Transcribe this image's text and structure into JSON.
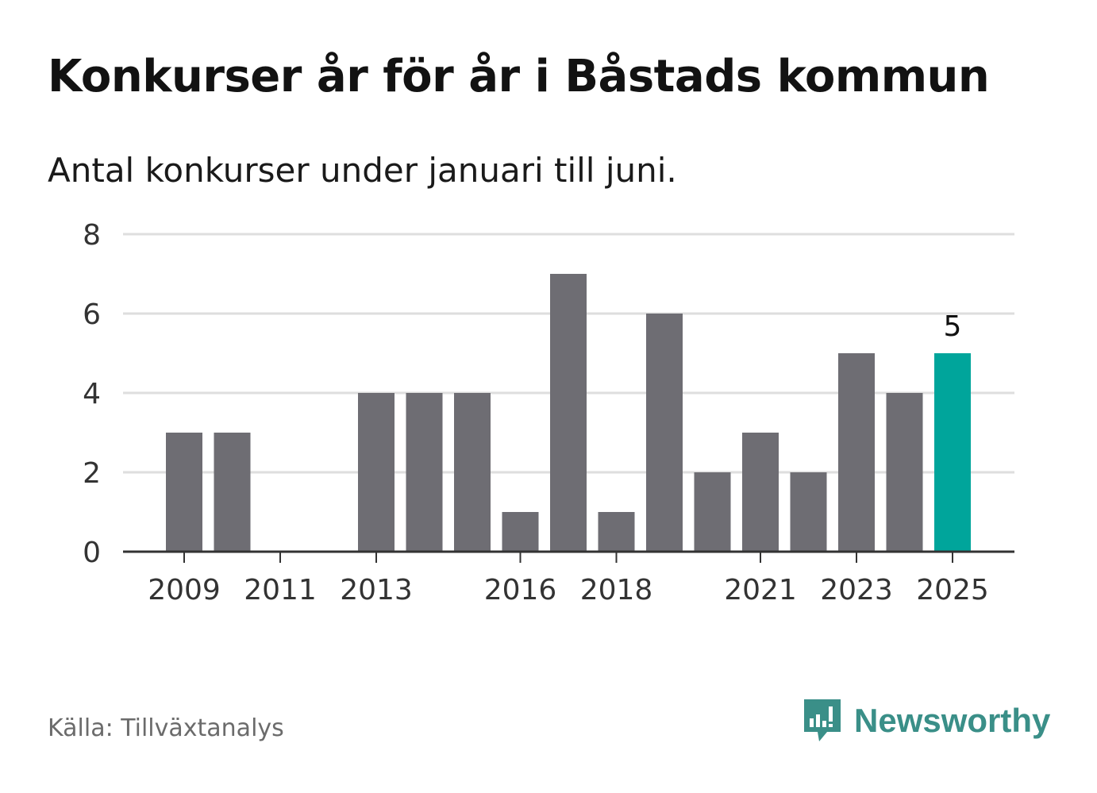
{
  "header": {
    "title": "Konkurser år för år i Båstads kommun",
    "subtitle": "Antal konkurser under januari till juni."
  },
  "footer": {
    "source": "Källa: Tillväxtanalys",
    "brand": "Newsworthy",
    "brand_icon": "newsworthy-logo-icon"
  },
  "colors": {
    "bar": "#6e6d73",
    "highlight": "#00a59b",
    "grid": "#dedede",
    "axis": "#333333",
    "brand": "#3a8f88"
  },
  "chart_data": {
    "type": "bar",
    "title": "Konkurser år för år i Båstads kommun",
    "subtitle": "Antal konkurser under januari till juni.",
    "categories": [
      "2009",
      "2010",
      "2011",
      "2012",
      "2013",
      "2014",
      "2015",
      "2016",
      "2017",
      "2018",
      "2019",
      "2020",
      "2021",
      "2022",
      "2023",
      "2024",
      "2025"
    ],
    "values": [
      3,
      3,
      0,
      0,
      4,
      4,
      4,
      1,
      7,
      1,
      6,
      2,
      3,
      2,
      5,
      4,
      5
    ],
    "x_tick_labels": [
      "2009",
      "2011",
      "2013",
      "2016",
      "2018",
      "2021",
      "2023",
      "2025"
    ],
    "y_ticks": [
      "0",
      "2",
      "4",
      "6",
      "8"
    ],
    "ylim": [
      0,
      8
    ],
    "grid": true,
    "highlight": {
      "category": "2025",
      "label": "5"
    },
    "xlabel": "",
    "ylabel": ""
  }
}
